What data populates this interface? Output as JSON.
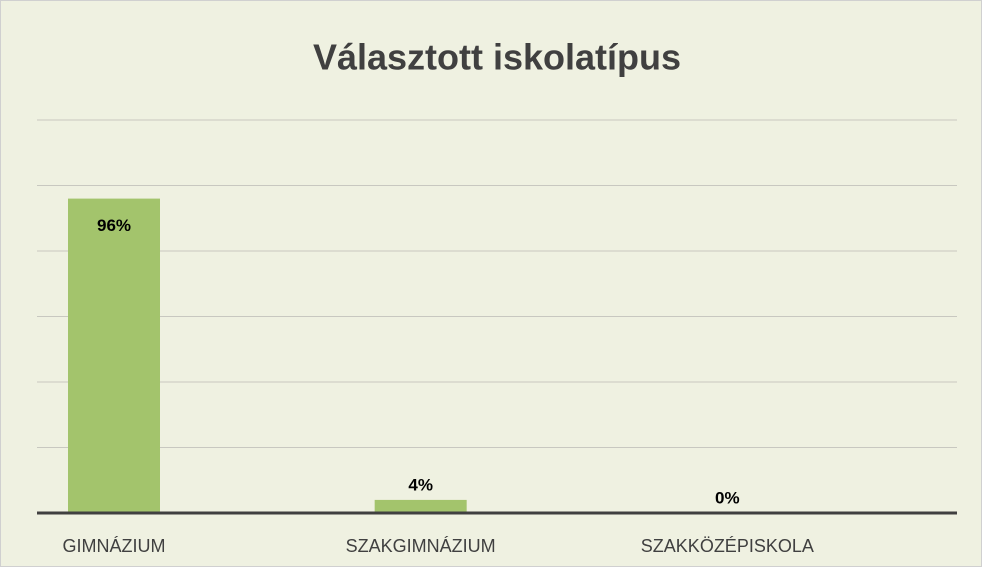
{
  "chart_data": {
    "type": "bar",
    "title": "Választott iskolatípus",
    "categories": [
      "GIMNÁZIUM",
      "SZAKGIMNÁZIUM",
      "SZAKKÖZÉPISKOLA"
    ],
    "values": [
      96,
      4,
      0
    ],
    "value_labels": [
      "96%",
      "4%",
      "0%"
    ],
    "color": "#a3c46c",
    "ylim": [
      0,
      120
    ],
    "yticks": [
      0,
      20,
      40,
      60,
      80,
      100,
      120
    ],
    "grid": true
  }
}
